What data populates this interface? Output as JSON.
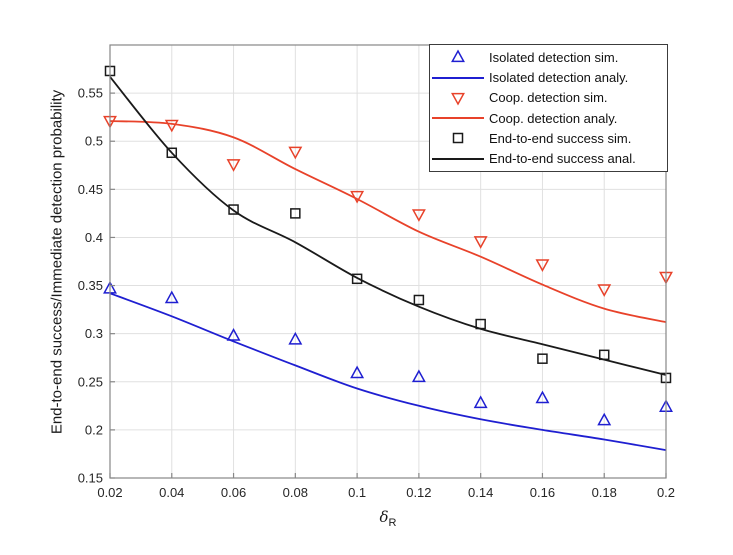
{
  "figure": {
    "background": "#ffffff"
  },
  "chart_data": {
    "type": "line",
    "title": "",
    "xlabel_symbol": "δ",
    "xlabel_subscript": "R",
    "ylabel": "End-to-end success/Immediate detection probability",
    "xlim": [
      0.02,
      0.2
    ],
    "ylim": [
      0.15,
      0.6
    ],
    "grid": true,
    "legend_position": "northeast",
    "x_ticks": [
      0.02,
      0.04,
      0.06,
      0.08,
      0.1,
      0.12,
      0.14,
      0.16,
      0.18,
      0.2
    ],
    "x_tick_labels": [
      "0.02",
      "0.04",
      "0.06",
      "0.08",
      "0.1",
      "0.12",
      "0.14",
      "0.16",
      "0.18",
      "0.2"
    ],
    "y_ticks": [
      0.15,
      0.2,
      0.25,
      0.3,
      0.35,
      0.4,
      0.45,
      0.5,
      0.55
    ],
    "y_tick_labels": [
      "0.15",
      "0.2",
      "0.25",
      "0.3",
      "0.35",
      "0.4",
      "0.45",
      "0.5",
      "0.55"
    ],
    "x": [
      0.02,
      0.04,
      0.06,
      0.08,
      0.1,
      0.12,
      0.14,
      0.16,
      0.18,
      0.2
    ],
    "series": [
      {
        "name": "Isolated detection sim.",
        "style": "markers",
        "marker": "triangle-up",
        "color": "#1f1fd1",
        "values": [
          0.347,
          0.337,
          0.298,
          0.294,
          0.259,
          0.255,
          0.228,
          0.233,
          0.21,
          0.224
        ]
      },
      {
        "name": "Isolated detection analy.",
        "style": "line",
        "marker": "none",
        "color": "#1f1fd1",
        "values": [
          0.342,
          0.318,
          0.292,
          0.267,
          0.243,
          0.225,
          0.211,
          0.2,
          0.19,
          0.179
        ]
      },
      {
        "name": "Coop. detection sim.",
        "style": "markers",
        "marker": "triangle-down",
        "color": "#e8422a",
        "values": [
          0.521,
          0.517,
          0.476,
          0.489,
          0.443,
          0.424,
          0.396,
          0.372,
          0.346,
          0.359
        ]
      },
      {
        "name": "Coop. detection analy.",
        "style": "line",
        "marker": "none",
        "color": "#e8422a",
        "values": [
          0.521,
          0.518,
          0.504,
          0.471,
          0.44,
          0.406,
          0.38,
          0.351,
          0.326,
          0.312
        ]
      },
      {
        "name": "End-to-end success sim.",
        "style": "markers",
        "marker": "square",
        "color": "#1a1a1a",
        "values": [
          0.573,
          0.488,
          0.429,
          0.425,
          0.357,
          0.335,
          0.31,
          0.274,
          0.278,
          0.254
        ]
      },
      {
        "name": "End-to-end success anal.",
        "style": "line",
        "marker": "none",
        "color": "#1a1a1a",
        "values": [
          0.567,
          0.488,
          0.428,
          0.395,
          0.358,
          0.328,
          0.305,
          0.289,
          0.273,
          0.257
        ]
      }
    ],
    "style_colors": {
      "grid": "#e0e0e0",
      "axis_box": "#878787",
      "tick_label": "#262626",
      "legend_border": "#3c3c3c"
    }
  }
}
